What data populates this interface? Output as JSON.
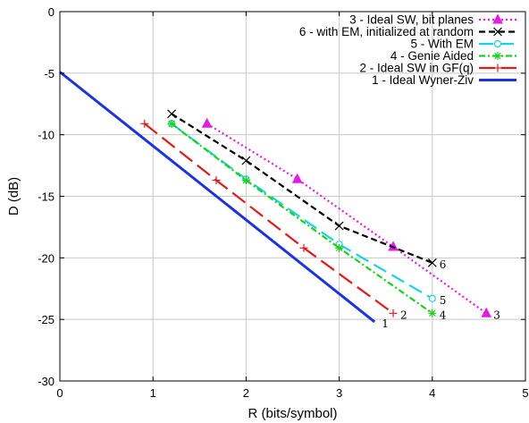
{
  "chart_data": {
    "type": "line",
    "xlabel": "R (bits/symbol)",
    "ylabel": "D (dB)",
    "xlim": [
      0,
      5
    ],
    "ylim": [
      -30,
      0
    ],
    "xticks": [
      "0",
      "1",
      "2",
      "3",
      "4",
      "5"
    ],
    "yticks": [
      "0",
      "-5",
      "-10",
      "-15",
      "-20",
      "-25",
      "-30"
    ],
    "grid": true,
    "legend_position": "top-right",
    "series": [
      {
        "name": "3 - Ideal SW, bit planes",
        "end_label": "3",
        "color": "#e619e6",
        "dash": "dot",
        "marker": "triangle",
        "x": [
          1.58,
          2.55,
          3.58,
          4.58
        ],
        "y": [
          -9.1,
          -13.6,
          -19.1,
          -24.5
        ]
      },
      {
        "name": "6 - with EM, initialized at random",
        "end_label": "6",
        "color": "#000000",
        "dash": "dash",
        "marker": "x",
        "x": [
          1.2,
          2.0,
          3.0,
          4.0
        ],
        "y": [
          -8.3,
          -12.1,
          -17.4,
          -20.4
        ]
      },
      {
        "name": "5 - With EM",
        "end_label": "5",
        "color": "#19d2e6",
        "dash": "longdash",
        "marker": "circle",
        "x": [
          1.2,
          2.0,
          3.0,
          4.0
        ],
        "y": [
          -9.1,
          -13.6,
          -18.9,
          -23.3
        ]
      },
      {
        "name": "4 - Genie Aided",
        "end_label": "4",
        "color": "#19d219",
        "dash": "dashdot",
        "marker": "star",
        "x": [
          1.2,
          2.0,
          3.0,
          4.0
        ],
        "y": [
          -9.1,
          -13.7,
          -19.2,
          -24.5
        ]
      },
      {
        "name": "2 - Ideal SW in GF(q)",
        "end_label": "2",
        "color": "#e61919",
        "dash": "longdash2",
        "marker": "plus",
        "x": [
          0.91,
          1.68,
          2.62,
          3.58
        ],
        "y": [
          -9.1,
          -13.7,
          -19.2,
          -24.5
        ]
      },
      {
        "name": "1 - Ideal Wyner-Ziv",
        "end_label": "1",
        "color": "#1932e6",
        "dash": "solid",
        "marker": "none",
        "x": [
          0.0,
          3.38
        ],
        "y": [
          -4.9,
          -25.2
        ]
      }
    ]
  }
}
